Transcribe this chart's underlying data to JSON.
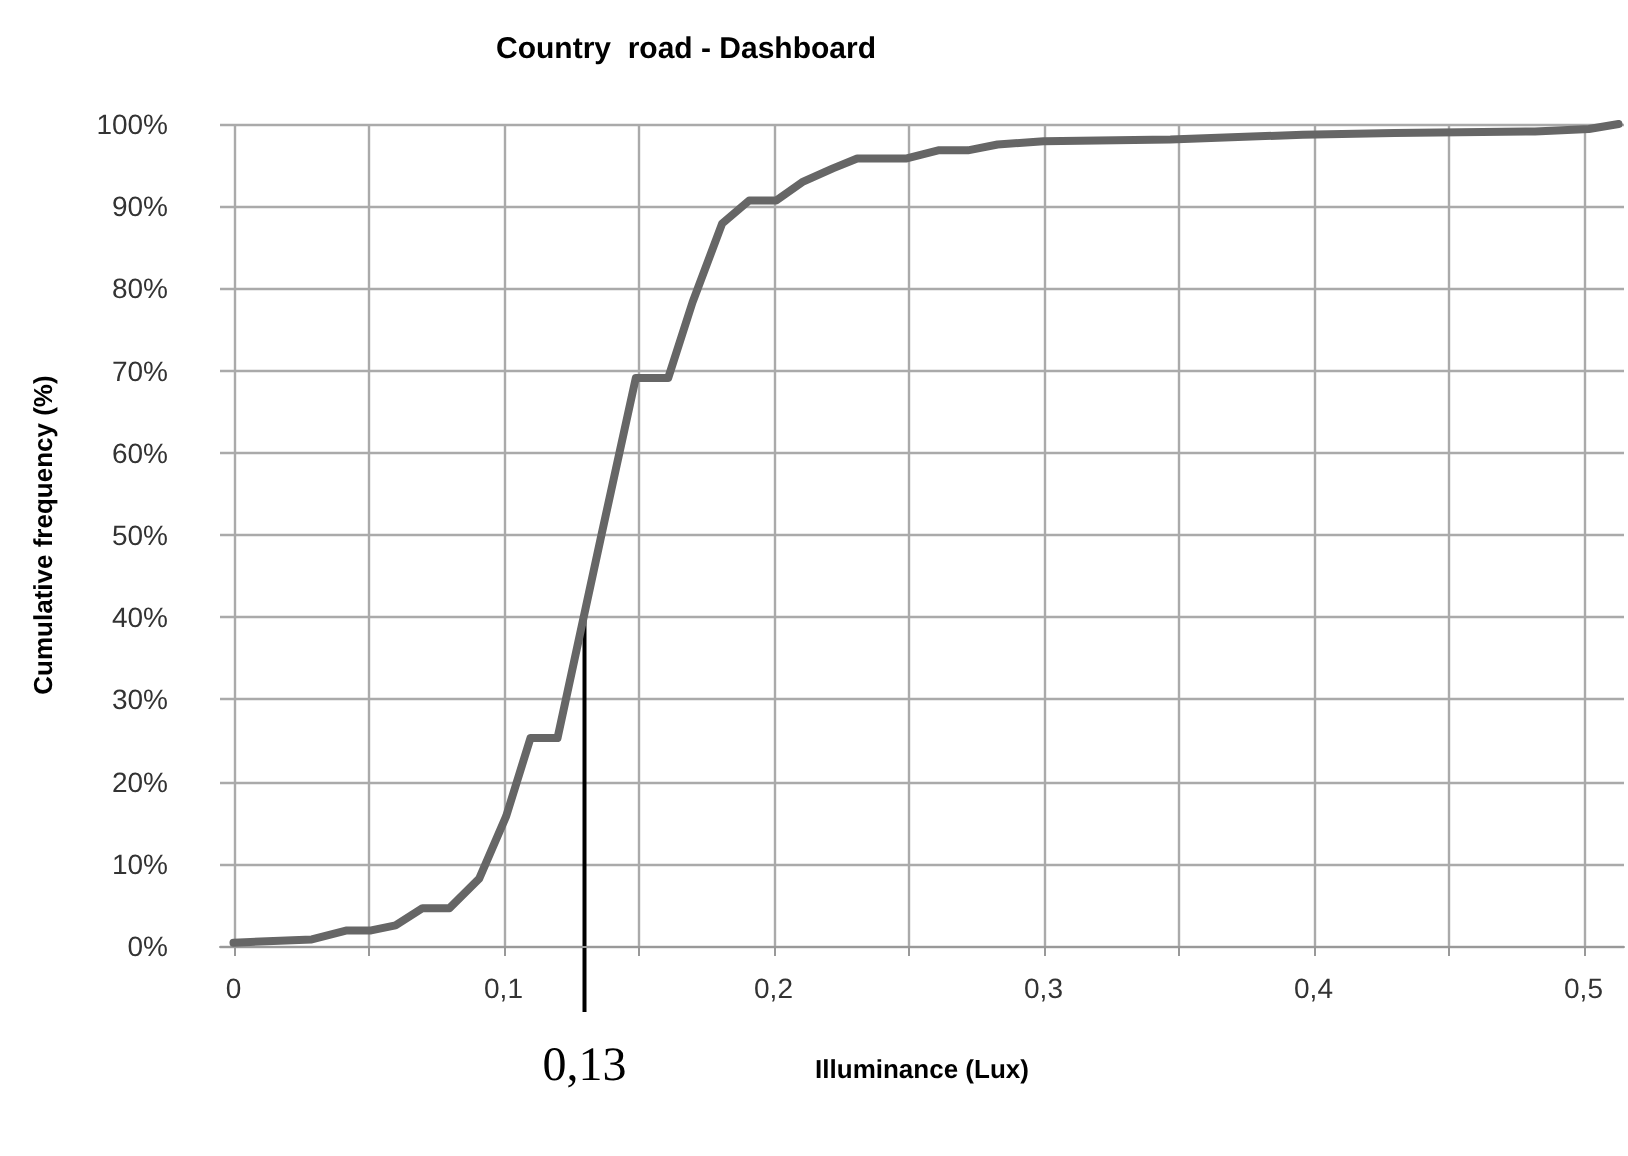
{
  "chart_data": {
    "type": "line",
    "title": "Country  road - Dashboard",
    "xlabel": "Illuminance (Lux)",
    "ylabel": "Cumulative frequency (%)",
    "x": [
      0.0,
      0.029,
      0.042,
      0.051,
      0.06,
      0.07,
      0.08,
      0.091,
      0.101,
      0.11,
      0.12,
      0.136,
      0.149,
      0.161,
      0.17,
      0.181,
      0.191,
      0.201,
      0.211,
      0.222,
      0.231,
      0.249,
      0.261,
      0.272,
      0.283,
      0.3,
      0.347,
      0.396,
      0.43,
      0.482,
      0.502,
      0.513
    ],
    "series": [
      {
        "color": "#666666",
        "values": [
          0.4,
          0.8,
          1.9,
          1.9,
          2.5,
          4.6,
          4.6,
          8.2,
          15.8,
          25.3,
          25.3,
          49.6,
          69.1,
          69.1,
          78.3,
          87.9,
          90.7,
          90.7,
          93,
          94.6,
          95.8,
          95.8,
          96.8,
          96.8,
          97.5,
          97.9,
          98.1,
          98.7,
          98.9,
          99.1,
          99.4,
          100
        ]
      }
    ],
    "xlim": [
      -0.005,
      0.515
    ],
    "xticks": [
      {
        "value": 0,
        "label": "0"
      },
      {
        "value": 0.05,
        "label": null
      },
      {
        "value": 0.1,
        "label": "0,1"
      },
      {
        "value": 0.15,
        "label": null
      },
      {
        "value": 0.2,
        "label": "0,2"
      },
      {
        "value": 0.25,
        "label": null
      },
      {
        "value": 0.3,
        "label": "0,3"
      },
      {
        "value": 0.35,
        "label": null
      },
      {
        "value": 0.4,
        "label": "0,4"
      },
      {
        "value": 0.45,
        "label": null
      },
      {
        "value": 0.5,
        "label": "0,5"
      }
    ],
    "ylim": [
      0,
      100
    ],
    "yticks": [
      {
        "value": 0,
        "label": "0%"
      },
      {
        "value": 10,
        "label": "10%"
      },
      {
        "value": 20,
        "label": "20%"
      },
      {
        "value": 30,
        "label": "30%"
      },
      {
        "value": 40,
        "label": "40%"
      },
      {
        "value": 50,
        "label": "50%"
      },
      {
        "value": 60,
        "label": "60%"
      },
      {
        "value": 70,
        "label": "70%"
      },
      {
        "value": 80,
        "label": "80%"
      },
      {
        "value": 90,
        "label": "90%"
      },
      {
        "value": 100,
        "label": "100%"
      }
    ],
    "ref_lines": [
      {
        "axis": "x",
        "value": 0.13,
        "label": "0,13",
        "color": "#000000"
      }
    ],
    "grid": true,
    "marker": "none",
    "line_style": "solid"
  }
}
